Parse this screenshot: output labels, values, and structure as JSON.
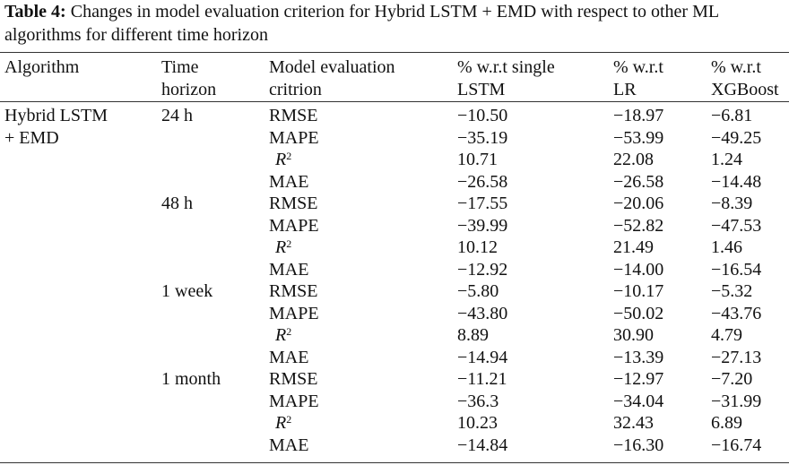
{
  "caption": {
    "label": "Table 4:",
    "text": " Changes in model evaluation criterion for Hybrid LSTM + EMD with respect to other ML algorithms for different time horizon"
  },
  "headers": {
    "algorithm": "Algorithm",
    "time_line1": "Time",
    "time_line2": "horizon",
    "criterion_line1": "Model evaluation",
    "criterion_line2": "critrion",
    "lstm_line1": "% w.r.t single",
    "lstm_line2": "LSTM",
    "lr_line1": "% w.r.t",
    "lr_line2": "LR",
    "xgb_line1": "% w.r.t",
    "xgb_line2": "XGBoost"
  },
  "algorithm": {
    "line1": "Hybrid LSTM",
    "line2": "+ EMD"
  },
  "rows": [
    {
      "horizon": "24 h",
      "criterion": "RMSE",
      "lstm": "−10.50",
      "lr": "−18.97",
      "xgb": "−6.81"
    },
    {
      "horizon": "",
      "criterion": "MAPE",
      "lstm": "−35.19",
      "lr": "−53.99",
      "xgb": "−49.25"
    },
    {
      "horizon": "",
      "criterion": "R",
      "sup": "2",
      "lstm": "10.71",
      "lr": "22.08",
      "xgb": "1.24"
    },
    {
      "horizon": "",
      "criterion": "MAE",
      "lstm": "−26.58",
      "lr": "−26.58",
      "xgb": "−14.48"
    },
    {
      "horizon": "48 h",
      "criterion": "RMSE",
      "lstm": "−17.55",
      "lr": "−20.06",
      "xgb": "−8.39"
    },
    {
      "horizon": "",
      "criterion": "MAPE",
      "lstm": "−39.99",
      "lr": "−52.82",
      "xgb": "−47.53"
    },
    {
      "horizon": "",
      "criterion": "R",
      "sup": "2",
      "lstm": "10.12",
      "lr": "21.49",
      "xgb": "1.46"
    },
    {
      "horizon": "",
      "criterion": "MAE",
      "lstm": "−12.92",
      "lr": "−14.00",
      "xgb": "−16.54"
    },
    {
      "horizon": "1 week",
      "criterion": "RMSE",
      "lstm": "−5.80",
      "lr": "−10.17",
      "xgb": "−5.32"
    },
    {
      "horizon": "",
      "criterion": "MAPE",
      "lstm": "−43.80",
      "lr": "−50.02",
      "xgb": "−43.76"
    },
    {
      "horizon": "",
      "criterion": "R",
      "sup": "2",
      "lstm": "8.89",
      "lr": "30.90",
      "xgb": "4.79"
    },
    {
      "horizon": "",
      "criterion": "MAE",
      "lstm": "−14.94",
      "lr": "−13.39",
      "xgb": "−27.13"
    },
    {
      "horizon": "1 month",
      "criterion": "RMSE",
      "lstm": "−11.21",
      "lr": "−12.97",
      "xgb": "−7.20"
    },
    {
      "horizon": "",
      "criterion": "MAPE",
      "lstm": "−36.3",
      "lr": "−34.04",
      "xgb": "−31.99"
    },
    {
      "horizon": "",
      "criterion": "R",
      "sup": "2",
      "lstm": "10.23",
      "lr": "32.43",
      "xgb": "6.89"
    },
    {
      "horizon": "",
      "criterion": "MAE",
      "lstm": "−14.84",
      "lr": "−16.30",
      "xgb": "−16.74"
    }
  ]
}
